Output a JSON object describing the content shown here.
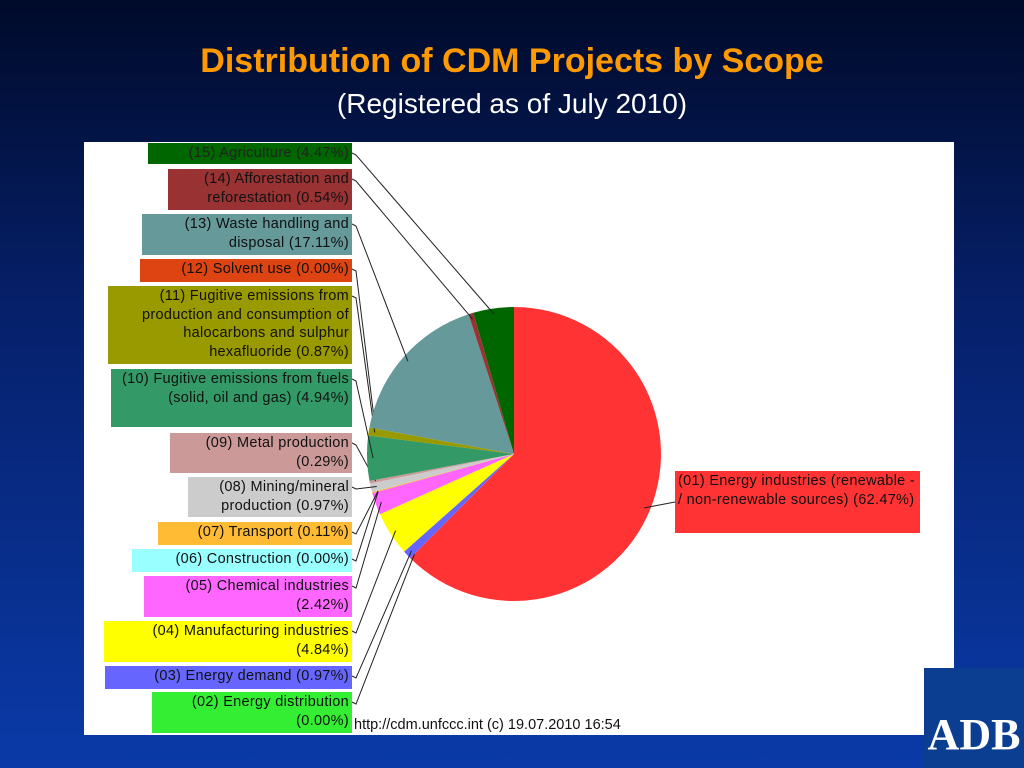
{
  "chart_data": {
    "type": "pie",
    "title": "Distribution of CDM Projects by Scope",
    "subtitle": "(Registered as of July 2010)",
    "start": "12 o'clock, clockwise",
    "slices": [
      {
        "code": "01",
        "label": "(01) Energy industries (renewable - / non-renewable sources) (62.47%)",
        "value": 62.47,
        "color": "#ff3333"
      },
      {
        "code": "02",
        "label": "(02) Energy distribution (0.00%)",
        "value": 0.0,
        "color": "#33ee33"
      },
      {
        "code": "03",
        "label": "(03) Energy demand (0.97%)",
        "value": 0.97,
        "color": "#6666ff"
      },
      {
        "code": "04",
        "label": "(04) Manufacturing industries (4.84%)",
        "value": 4.84,
        "color": "#ffff00"
      },
      {
        "code": "05",
        "label": "(05) Chemical industries (2.42%)",
        "value": 2.42,
        "color": "#ff66ff"
      },
      {
        "code": "06",
        "label": "(06) Construction (0.00%)",
        "value": 0.0,
        "color": "#99ffff"
      },
      {
        "code": "07",
        "label": "(07) Transport (0.11%)",
        "value": 0.11,
        "color": "#ffbb33"
      },
      {
        "code": "08",
        "label": "(08) Mining/mineral production (0.97%)",
        "value": 0.97,
        "color": "#cccccc"
      },
      {
        "code": "09",
        "label": "(09) Metal production (0.29%)",
        "value": 0.29,
        "color": "#cc9999"
      },
      {
        "code": "10",
        "label": "(10) Fugitive emissions from fuels (solid, oil and gas) (4.94%)",
        "value": 4.94,
        "color": "#339966"
      },
      {
        "code": "11",
        "label": "(11) Fugitive emissions from production and consumption of halocarbons and sulphur hexafluoride (0.87%)",
        "value": 0.87,
        "color": "#999900"
      },
      {
        "code": "12",
        "label": "(12) Solvent use (0.00%)",
        "value": 0.0,
        "color": "#dd4411"
      },
      {
        "code": "13",
        "label": "(13) Waste handling and disposal (17.11%)",
        "value": 17.11,
        "color": "#669999"
      },
      {
        "code": "14",
        "label": "(14) Afforestation and reforestation (0.54%)",
        "value": 0.54,
        "color": "#993333"
      },
      {
        "code": "15",
        "label": "(15) Agriculture (4.47%)",
        "value": 4.47,
        "color": "#006600"
      }
    ],
    "credit": "http://cdm.unfccc.int (c) 19.07.2010 16:54"
  },
  "logo": "ADB"
}
